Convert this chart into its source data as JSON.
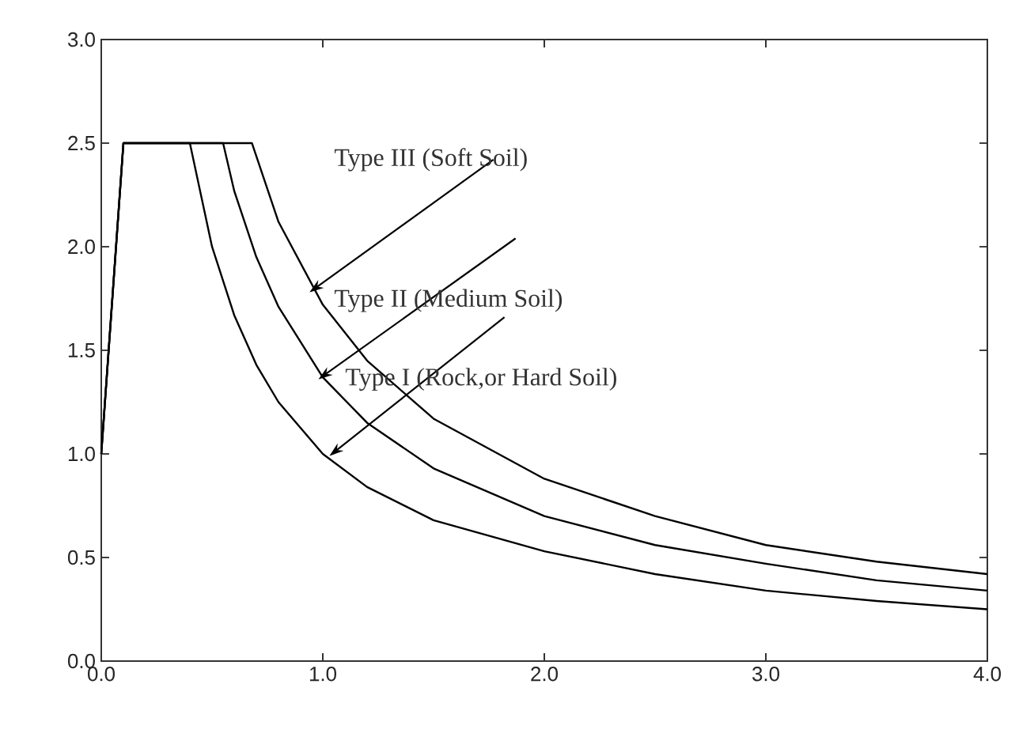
{
  "chart_data": {
    "type": "line",
    "xlim": [
      0,
      4
    ],
    "ylim": [
      0,
      3
    ],
    "xticks": [
      {
        "value": 0,
        "label": "0.0"
      },
      {
        "value": 1,
        "label": "1.0"
      },
      {
        "value": 2,
        "label": "2.0"
      },
      {
        "value": 3,
        "label": "3.0"
      },
      {
        "value": 4,
        "label": "4.0"
      }
    ],
    "yticks": [
      {
        "value": 0,
        "label": "0.0"
      },
      {
        "value": 0.5,
        "label": "0.5"
      },
      {
        "value": 1,
        "label": "1.0"
      },
      {
        "value": 1.5,
        "label": "1.5"
      },
      {
        "value": 2,
        "label": "2.0"
      },
      {
        "value": 2.5,
        "label": "2.5"
      },
      {
        "value": 3,
        "label": "3.0"
      }
    ],
    "grid": false,
    "marker": "none",
    "line_style": "solid",
    "series": [
      {
        "color": "#000000",
        "x": [
          0,
          0.1,
          0.4,
          0.5,
          0.6,
          0.7,
          0.8,
          1.0,
          1.2,
          1.5,
          2.0,
          2.5,
          3.0,
          3.5,
          4.0
        ],
        "values": [
          1.0,
          2.5,
          2.5,
          2.0,
          1.67,
          1.43,
          1.25,
          1.0,
          0.84,
          0.68,
          0.53,
          0.42,
          0.34,
          0.29,
          0.25
        ]
      },
      {
        "color": "#000000",
        "x": [
          0,
          0.1,
          0.55,
          0.6,
          0.7,
          0.8,
          1.0,
          1.2,
          1.5,
          2.0,
          2.5,
          3.0,
          3.5,
          4.0
        ],
        "values": [
          1.0,
          2.5,
          2.5,
          2.27,
          1.95,
          1.71,
          1.37,
          1.15,
          0.93,
          0.7,
          0.56,
          0.47,
          0.39,
          0.34
        ]
      },
      {
        "color": "#000000",
        "x": [
          0,
          0.1,
          0.68,
          0.8,
          1.0,
          1.2,
          1.5,
          2.0,
          2.5,
          3.0,
          3.5,
          4.0
        ],
        "values": [
          1.0,
          2.5,
          2.5,
          2.12,
          1.72,
          1.45,
          1.17,
          0.88,
          0.7,
          0.56,
          0.48,
          0.42
        ]
      }
    ],
    "annotations": [
      {
        "text": "Type III (Soft Soil)",
        "x": 0.94,
        "y": 1.78
      },
      {
        "text": "Type II (Medium Soil)",
        "x": 0.98,
        "y": 1.36
      },
      {
        "text": "Type I (Rock,or  Hard Soil)",
        "x": 1.03,
        "y": 0.99
      }
    ]
  }
}
